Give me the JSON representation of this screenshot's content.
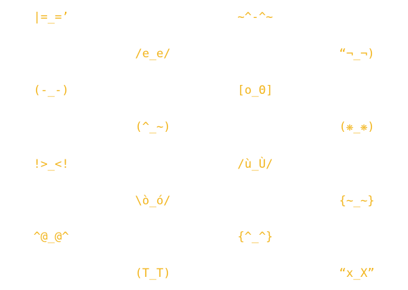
{
  "style": {
    "text_color": "#f2b51d",
    "background": "#ffffff"
  },
  "faces": [
    {
      "text": "|=_=’"
    },
    {
      "text": "~^-^~"
    },
    {
      "text": "/e_e/"
    },
    {
      "text": "“¬_¬)"
    },
    {
      "text": "(-_-)"
    },
    {
      "text": "[o_Θ]"
    },
    {
      "text": "(^_~)"
    },
    {
      "text": "(❋_❋)"
    },
    {
      "text": "!>_<!"
    },
    {
      "text": "/ù_Ù/"
    },
    {
      "text": "\\ò_ó/"
    },
    {
      "text": "{~_~}"
    },
    {
      "text": "^@_@^"
    },
    {
      "text": "{^_^}"
    },
    {
      "text": "(T_T)"
    },
    {
      "text": "“x_X”"
    }
  ]
}
